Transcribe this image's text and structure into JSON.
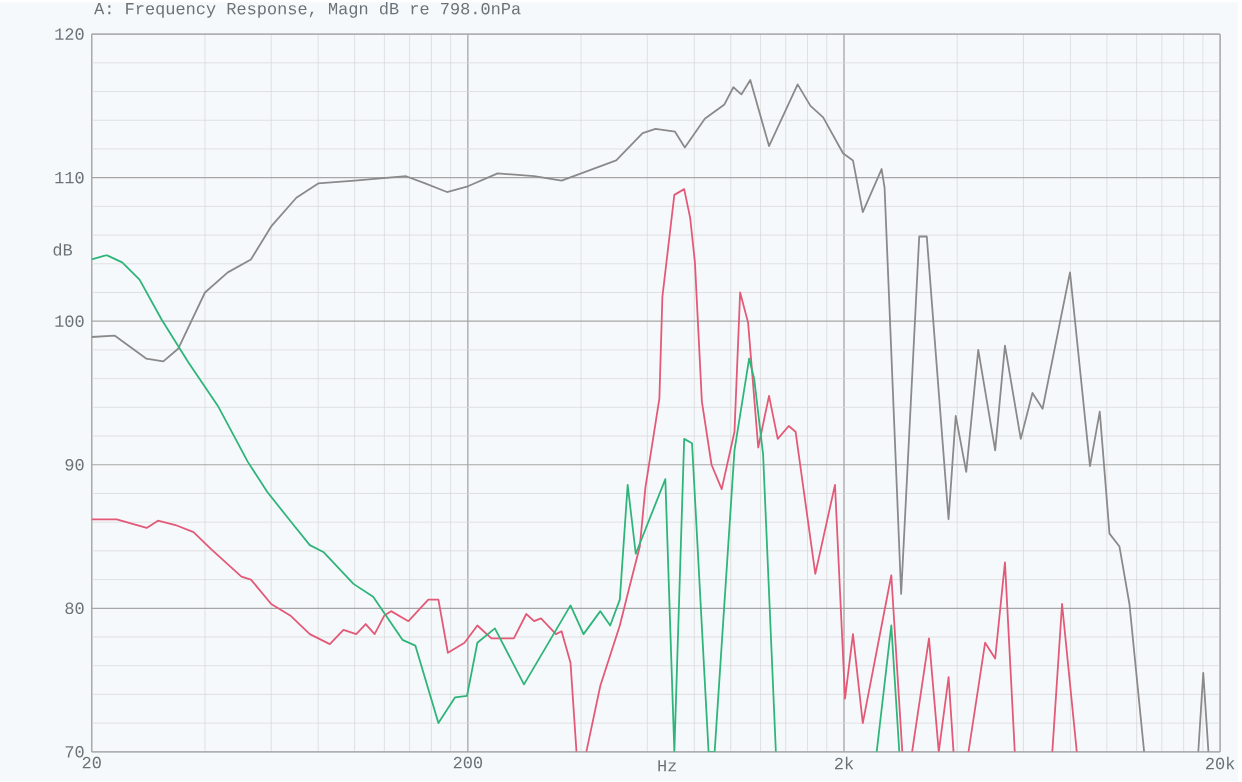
{
  "chart_data": {
    "type": "line",
    "title": "A: Frequency Response, Magn dB re 798.0nPa",
    "xlabel": "Hz",
    "ylabel": "dB",
    "log": "x",
    "grid": true,
    "xlim": [
      20,
      20000
    ],
    "ylim": [
      70,
      120
    ],
    "xticks": [
      {
        "value": 20,
        "label": "20"
      },
      {
        "value": 200,
        "label": "200"
      },
      {
        "value": 2000,
        "label": "2k"
      },
      {
        "value": 20000,
        "label": "20k"
      }
    ],
    "yticks": [
      70,
      80,
      90,
      100,
      110,
      120
    ],
    "series": [
      {
        "color": "#8a8a8a",
        "x": [
          20,
          23,
          27.9,
          31,
          34,
          40,
          46,
          53,
          60,
          70,
          80,
          100,
          137,
          154,
          176,
          200,
          240,
          300,
          355,
          496,
          583,
          631,
          711,
          755,
          853,
          962,
          1016,
          1067,
          1127,
          1264,
          1506,
          1629,
          1761,
          1988,
          2113,
          2244,
          2518,
          2564,
          2838,
          3170,
          3320,
          3794,
          3964,
          4227,
          4550,
          5046,
          5358,
          5902,
          6340,
          6746,
          7980,
          9016,
          9572,
          10160,
          10800,
          11480,
          12560,
          15000,
          17500,
          18040,
          18620
        ],
        "values": [
          98.9,
          99.0,
          97.4,
          97.2,
          98.1,
          102.0,
          103.4,
          104.3,
          106.6,
          108.6,
          109.6,
          109.8,
          110.1,
          109.6,
          109.0,
          109.4,
          110.3,
          110.1,
          109.8,
          111.2,
          113.1,
          113.4,
          113.2,
          112.1,
          114.1,
          115.1,
          116.3,
          115.8,
          116.8,
          112.2,
          116.5,
          115.0,
          114.2,
          111.7,
          111.2,
          107.6,
          110.6,
          109.3,
          81.0,
          105.9,
          105.9,
          86.2,
          93.4,
          89.5,
          98.0,
          91.0,
          98.3,
          91.8,
          95.0,
          93.9,
          103.4,
          89.9,
          93.7,
          85.2,
          84.3,
          80.3,
          70,
          null,
          70,
          75.5,
          70
        ]
      },
      {
        "color": "#e35a78",
        "x": [
          20,
          23.3,
          28,
          30,
          33.4,
          37.3,
          41.6,
          50,
          53,
          60,
          67.4,
          76,
          85.9,
          93.4,
          101,
          107,
          113,
          120,
          125,
          139,
          157,
          167,
          177,
          196,
          212,
          231,
          265,
          286,
          300,
          313,
          343,
          355,
          375,
          389,
          400,
          413,
          450,
          507,
          538,
          573,
          593,
          646,
          658,
          708,
          752,
          780,
          803,
          838,
          889,
          946,
          1023,
          1059,
          1112,
          1183,
          1264,
          1333,
          1426,
          1487,
          1678,
          1893,
          2013,
          2113,
          2244,
          2672,
          2858,
          2950,
          3035,
          3365,
          3573,
          3795,
          3911,
          4100,
          4286,
          4745,
          5046,
          5358,
          5690,
          6400,
          7160,
          7600,
          8317
        ],
        "values": [
          86.2,
          86.2,
          85.6,
          86.1,
          85.8,
          85.3,
          84.1,
          82.2,
          82.0,
          80.3,
          79.5,
          78.2,
          77.5,
          78.5,
          78.2,
          78.9,
          78.2,
          79.5,
          79.8,
          79.1,
          80.6,
          80.6,
          76.9,
          77.6,
          78.8,
          77.9,
          77.9,
          79.6,
          79.1,
          79.3,
          78.2,
          78.4,
          76.2,
          70,
          null,
          70,
          74.6,
          78.8,
          81.5,
          84.3,
          88.4,
          94.6,
          101.7,
          108.8,
          109.2,
          107.2,
          104.1,
          94.4,
          90.0,
          88.3,
          92.3,
          102.0,
          99.9,
          91.2,
          94.8,
          91.8,
          92.7,
          92.3,
          82.4,
          88.6,
          73.7,
          78.2,
          72.0,
          82.3,
          70,
          null,
          70,
          77.9,
          70,
          75.2,
          70,
          null,
          70,
          77.6,
          76.5,
          83.2,
          70,
          null,
          70,
          80.3,
          70
        ]
      },
      {
        "color": "#2fb57a",
        "x": [
          20,
          21.9,
          24.1,
          26.8,
          30.7,
          36.2,
          43.3,
          52,
          58.6,
          67.4,
          76,
          82.8,
          99.3,
          112,
          134,
          145,
          167,
          185,
          199,
          212,
          236,
          282,
          375,
          406,
          450,
          478,
          507,
          532,
          559,
          670,
          708,
          752,
          789,
          873,
          906,
          1023,
          1119,
          1154,
          1219,
          1318,
          1800,
          2443,
          2672,
          2806
        ],
        "values": [
          104.3,
          104.6,
          104.1,
          102.9,
          100.1,
          97.1,
          94.1,
          90.2,
          88.1,
          86.1,
          84.4,
          83.9,
          81.7,
          80.8,
          77.8,
          77.4,
          72.0,
          73.8,
          73.9,
          77.6,
          78.6,
          74.7,
          80.2,
          78.2,
          79.8,
          78.8,
          80.6,
          88.6,
          83.8,
          89.0,
          70,
          91.8,
          91.5,
          70,
          70,
          91.0,
          97.4,
          96.0,
          90.7,
          70,
          null,
          70,
          78.8,
          70
        ]
      }
    ]
  }
}
